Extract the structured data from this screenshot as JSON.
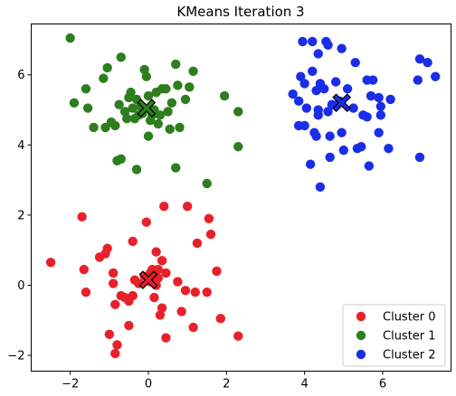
{
  "chart_data": {
    "type": "scatter",
    "title": "KMeans Iteration 3",
    "xlabel": "",
    "ylabel": "",
    "xlim": [
      -3.0,
      7.75
    ],
    "ylim": [
      -2.45,
      7.45
    ],
    "x_ticks": [
      -2,
      0,
      2,
      4,
      6
    ],
    "y_ticks": [
      -2,
      0,
      2,
      4,
      6
    ],
    "x_tick_labels": [
      "−2",
      "0",
      "2",
      "4",
      "6"
    ],
    "y_tick_labels": [
      "−2",
      "0",
      "2",
      "4",
      "6"
    ],
    "grid": false,
    "legend_position": "lower-right",
    "series": [
      {
        "name": "Cluster 0",
        "color": "#e8202a",
        "points": [
          [
            -2.5,
            0.65
          ],
          [
            -1.7,
            1.95
          ],
          [
            -1.65,
            0.45
          ],
          [
            -1.6,
            -0.2
          ],
          [
            -1.25,
            0.8
          ],
          [
            -1.1,
            0.9
          ],
          [
            -1.05,
            1.05
          ],
          [
            -1.0,
            -1.4
          ],
          [
            -0.9,
            0.35
          ],
          [
            -0.9,
            0.05
          ],
          [
            -0.85,
            -0.55
          ],
          [
            -0.85,
            -1.95
          ],
          [
            -0.8,
            -1.7
          ],
          [
            -0.7,
            -0.3
          ],
          [
            -0.6,
            -0.35
          ],
          [
            -0.5,
            -0.45
          ],
          [
            -0.5,
            -1.15
          ],
          [
            -0.4,
            -0.3
          ],
          [
            -0.4,
            1.25
          ],
          [
            -0.35,
            0.15
          ],
          [
            -0.25,
            0.05
          ],
          [
            -0.1,
            0.25
          ],
          [
            -0.05,
            1.8
          ],
          [
            0.0,
            0.2
          ],
          [
            0.05,
            0.1
          ],
          [
            0.05,
            0.35
          ],
          [
            0.1,
            0.15
          ],
          [
            0.1,
            0.45
          ],
          [
            0.15,
            -0.35
          ],
          [
            0.2,
            0.0
          ],
          [
            0.2,
            0.95
          ],
          [
            0.25,
            0.45
          ],
          [
            0.3,
            -0.85
          ],
          [
            0.35,
            0.7
          ],
          [
            0.35,
            -0.65
          ],
          [
            0.4,
            2.25
          ],
          [
            0.45,
            0.35
          ],
          [
            0.45,
            -1.5
          ],
          [
            0.75,
            0.1
          ],
          [
            0.85,
            -0.75
          ],
          [
            0.95,
            -0.15
          ],
          [
            1.0,
            2.25
          ],
          [
            1.15,
            -1.2
          ],
          [
            1.2,
            -0.2
          ],
          [
            1.25,
            1.2
          ],
          [
            1.5,
            -0.2
          ],
          [
            1.55,
            1.9
          ],
          [
            1.6,
            1.45
          ],
          [
            1.75,
            0.4
          ],
          [
            1.85,
            -0.95
          ],
          [
            2.3,
            -1.45
          ],
          [
            0.25,
            0.2
          ]
        ]
      },
      {
        "name": "Cluster 1",
        "color": "#2e7d1e",
        "points": [
          [
            -2.0,
            7.05
          ],
          [
            -1.9,
            5.2
          ],
          [
            -1.6,
            5.6
          ],
          [
            -1.55,
            5.05
          ],
          [
            -1.4,
            4.5
          ],
          [
            -1.1,
            4.5
          ],
          [
            -1.15,
            5.9
          ],
          [
            -1.05,
            6.2
          ],
          [
            -0.95,
            4.65
          ],
          [
            -0.85,
            4.55
          ],
          [
            -0.8,
            3.55
          ],
          [
            -0.7,
            3.6
          ],
          [
            -0.75,
            5.15
          ],
          [
            -0.7,
            6.5
          ],
          [
            -0.6,
            4.95
          ],
          [
            -0.55,
            4.75
          ],
          [
            -0.5,
            5.35
          ],
          [
            -0.45,
            5.5
          ],
          [
            -0.4,
            5.05
          ],
          [
            -0.35,
            4.75
          ],
          [
            -0.3,
            5.3
          ],
          [
            -0.3,
            3.3
          ],
          [
            -0.25,
            4.85
          ],
          [
            -0.2,
            5.1
          ],
          [
            -0.15,
            4.9
          ],
          [
            -0.1,
            6.15
          ],
          [
            -0.05,
            5.95
          ],
          [
            0.0,
            4.25
          ],
          [
            0.0,
            5.4
          ],
          [
            0.05,
            4.7
          ],
          [
            0.1,
            4.85
          ],
          [
            0.15,
            5.0
          ],
          [
            0.2,
            5.5
          ],
          [
            0.25,
            4.6
          ],
          [
            0.3,
            4.85
          ],
          [
            0.35,
            5.6
          ],
          [
            0.45,
            5.6
          ],
          [
            0.5,
            4.95
          ],
          [
            0.55,
            4.45
          ],
          [
            0.6,
            5.2
          ],
          [
            0.7,
            6.3
          ],
          [
            0.7,
            3.35
          ],
          [
            0.75,
            5.7
          ],
          [
            0.8,
            4.5
          ],
          [
            0.95,
            5.3
          ],
          [
            1.05,
            5.65
          ],
          [
            1.15,
            6.1
          ],
          [
            1.5,
            2.9
          ],
          [
            1.95,
            5.4
          ],
          [
            2.3,
            4.95
          ],
          [
            2.3,
            3.95
          ]
        ]
      },
      {
        "name": "Cluster 2",
        "color": "#1a2ee8",
        "points": [
          [
            3.7,
            5.45
          ],
          [
            3.85,
            5.25
          ],
          [
            3.85,
            4.55
          ],
          [
            3.9,
            5.95
          ],
          [
            3.95,
            6.95
          ],
          [
            4.0,
            4.55
          ],
          [
            4.0,
            5.75
          ],
          [
            4.05,
            5.05
          ],
          [
            4.15,
            3.45
          ],
          [
            4.2,
            6.1
          ],
          [
            4.2,
            6.95
          ],
          [
            4.25,
            4.35
          ],
          [
            4.3,
            5.55
          ],
          [
            4.3,
            4.25
          ],
          [
            4.35,
            6.6
          ],
          [
            4.35,
            5.0
          ],
          [
            4.35,
            4.85
          ],
          [
            4.4,
            2.8
          ],
          [
            4.4,
            5.75
          ],
          [
            4.5,
            5.6
          ],
          [
            4.55,
            6.95
          ],
          [
            4.6,
            6.85
          ],
          [
            4.6,
            4.95
          ],
          [
            4.65,
            4.25
          ],
          [
            4.65,
            3.65
          ],
          [
            4.7,
            5.15
          ],
          [
            4.8,
            5.8
          ],
          [
            4.9,
            5.25
          ],
          [
            4.95,
            6.75
          ],
          [
            4.95,
            4.35
          ],
          [
            5.0,
            3.85
          ],
          [
            5.1,
            5.6
          ],
          [
            5.3,
            6.35
          ],
          [
            5.35,
            3.9
          ],
          [
            5.45,
            3.95
          ],
          [
            5.5,
            4.85
          ],
          [
            5.6,
            4.8
          ],
          [
            5.6,
            5.85
          ],
          [
            5.65,
            3.4
          ],
          [
            5.7,
            5.4
          ],
          [
            5.75,
            5.85
          ],
          [
            5.9,
            4.35
          ],
          [
            5.9,
            5.35
          ],
          [
            5.95,
            5.1
          ],
          [
            5.95,
            4.85
          ],
          [
            6.15,
            3.9
          ],
          [
            6.2,
            5.3
          ],
          [
            6.9,
            5.85
          ],
          [
            6.95,
            6.45
          ],
          [
            6.95,
            3.65
          ],
          [
            7.15,
            6.35
          ],
          [
            7.35,
            5.95
          ],
          [
            5.25,
            5.05
          ]
        ]
      }
    ],
    "centroids": [
      {
        "cluster": "Cluster 0",
        "x": 0.0,
        "y": 0.15,
        "color": "#e8202a"
      },
      {
        "cluster": "Cluster 1",
        "x": -0.05,
        "y": 5.05,
        "color": "#2e7d1e"
      },
      {
        "cluster": "Cluster 2",
        "x": 4.95,
        "y": 5.2,
        "color": "#1a2ee8"
      }
    ]
  }
}
